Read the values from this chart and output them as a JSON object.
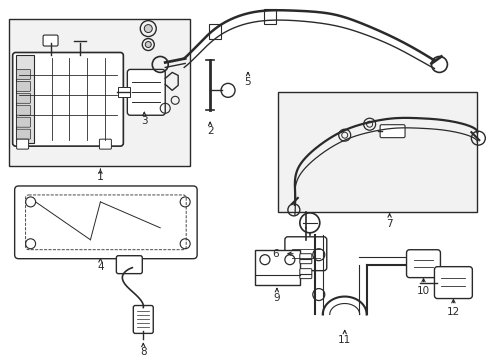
{
  "bg_color": "#ffffff",
  "line_color": "#2a2a2a",
  "box_fill": "#f0f0f0",
  "fig_width": 4.89,
  "fig_height": 3.6,
  "dpi": 100
}
